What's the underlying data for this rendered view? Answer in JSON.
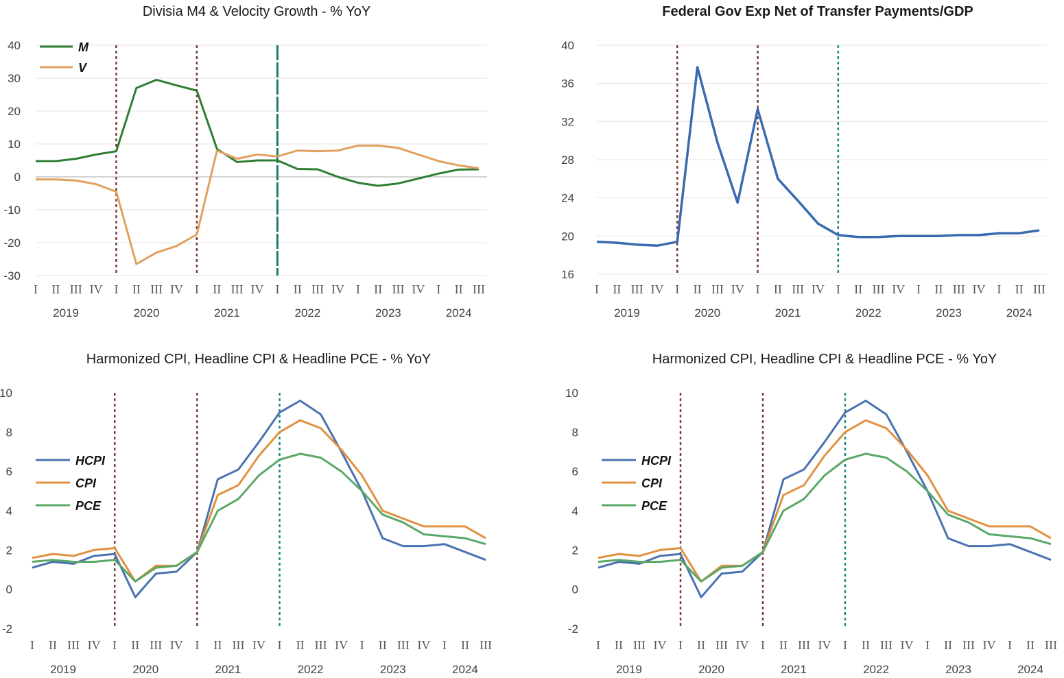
{
  "quarters": [
    "I",
    "II",
    "III",
    "IV",
    "I",
    "II",
    "III",
    "IV",
    "I",
    "II",
    "III",
    "IV",
    "I",
    "II",
    "III",
    "IV",
    "I",
    "II",
    "III",
    "IV",
    "I",
    "II",
    "III"
  ],
  "years": [
    "2019",
    "2020",
    "2021",
    "2022",
    "2023",
    "2024"
  ],
  "chart_data": [
    {
      "id": "chart1",
      "type": "line",
      "title": "Divisia M4 & Velocity Growth - % YoY",
      "title_bold": false,
      "ylim": [
        -30,
        40
      ],
      "yticks": [
        40,
        30,
        20,
        10,
        0,
        -10,
        -20,
        -30
      ],
      "grid": true,
      "zero_line": true,
      "legend_position": "top-left",
      "x_categories": [
        "2019 I",
        "2019 II",
        "2019 III",
        "2019 IV",
        "2020 I",
        "2020 II",
        "2020 III",
        "2020 IV",
        "2021 I",
        "2021 II",
        "2021 III",
        "2021 IV",
        "2022 I",
        "2022 II",
        "2022 III",
        "2022 IV",
        "2023 I",
        "2023 II",
        "2023 III",
        "2023 IV",
        "2024 I",
        "2024 II",
        "2024 III"
      ],
      "vlines": [
        {
          "at": "2020 I",
          "color": "#7B3B3B",
          "style": "dotted"
        },
        {
          "at": "2021 I",
          "color": "#7B3B3B",
          "style": "dotted"
        },
        {
          "at": "2022 I",
          "color": "#1B7A72",
          "style": "solid-dash"
        }
      ],
      "series": [
        {
          "name": "M",
          "color": "#2E7D32",
          "values": [
            4.8,
            4.8,
            5.5,
            6.8,
            7.8,
            27.0,
            29.5,
            27.8,
            26.2,
            8.5,
            4.5,
            5.0,
            5.0,
            2.4,
            2.3,
            0.0,
            -1.8,
            -2.7,
            -2.0,
            -0.5,
            1.0,
            2.2,
            2.3
          ]
        },
        {
          "name": "V",
          "color": "#E0A060",
          "values": [
            -0.8,
            -0.8,
            -1.1,
            -2.2,
            -4.5,
            -26.5,
            -23.0,
            -21.0,
            -17.5,
            8.0,
            5.5,
            6.8,
            6.2,
            8.0,
            7.8,
            8.0,
            9.5,
            9.5,
            8.8,
            6.8,
            4.8,
            3.5,
            2.6
          ]
        }
      ]
    },
    {
      "id": "chart2",
      "type": "line",
      "title": "Federal Gov Exp Net of Transfer Payments/GDP",
      "title_bold": true,
      "ylim": [
        16,
        40
      ],
      "yticks": [
        40,
        36,
        32,
        28,
        24,
        20,
        16
      ],
      "grid": true,
      "zero_line": false,
      "legend_position": "none",
      "x_categories": [
        "2019 I",
        "2019 II",
        "2019 III",
        "2019 IV",
        "2020 I",
        "2020 II",
        "2020 III",
        "2020 IV",
        "2021 I",
        "2021 II",
        "2021 III",
        "2021 IV",
        "2022 I",
        "2022 II",
        "2022 III",
        "2022 IV",
        "2023 I",
        "2023 II",
        "2023 III",
        "2023 IV",
        "2024 I",
        "2024 II",
        "2024 III"
      ],
      "vlines": [
        {
          "at": "2020 I",
          "color": "#7B3B3B",
          "style": "dotted"
        },
        {
          "at": "2021 I",
          "color": "#7B3B3B",
          "style": "dotted"
        },
        {
          "at": "2022 I",
          "color": "#1B8A80",
          "style": "dotted"
        }
      ],
      "series": [
        {
          "name": "",
          "color": "#3A6AB0",
          "values": [
            19.4,
            19.3,
            19.1,
            19.0,
            19.4,
            37.7,
            29.8,
            23.5,
            33.3,
            26.0,
            23.7,
            21.3,
            20.1,
            19.9,
            19.9,
            20.0,
            20.0,
            20.0,
            20.1,
            20.1,
            20.3,
            20.3,
            20.6
          ]
        }
      ]
    },
    {
      "id": "chart3",
      "type": "line",
      "title": "Harmonized CPI, Headline CPI & Headline PCE - % YoY",
      "title_bold": false,
      "ylim": [
        -2,
        10
      ],
      "yticks": [
        10,
        8,
        6,
        4,
        2,
        0,
        -2
      ],
      "grid": false,
      "zero_line": false,
      "legend_position": "middle-left",
      "x_categories": [
        "2019 I",
        "2019 II",
        "2019 III",
        "2019 IV",
        "2020 I",
        "2020 II",
        "2020 III",
        "2020 IV",
        "2021 I",
        "2021 II",
        "2021 III",
        "2021 IV",
        "2022 I",
        "2022 II",
        "2022 III",
        "2022 IV",
        "2023 I",
        "2023 II",
        "2023 III",
        "2023 IV",
        "2024 I",
        "2024 II",
        "2024 III"
      ],
      "vlines": [
        {
          "at": "2020 I",
          "color": "#7B3B3B",
          "style": "dotted"
        },
        {
          "at": "2021 I",
          "color": "#7B3B3B",
          "style": "dotted"
        },
        {
          "at": "2022 I",
          "color": "#1B8A80",
          "style": "dotted"
        }
      ],
      "series": [
        {
          "name": "HCPI",
          "color": "#4A72B0",
          "values": [
            1.1,
            1.4,
            1.3,
            1.7,
            1.8,
            -0.4,
            0.8,
            0.9,
            1.9,
            5.6,
            6.1,
            7.5,
            9.0,
            9.6,
            8.9,
            7.0,
            5.0,
            2.6,
            2.2,
            2.2,
            2.3,
            1.9,
            1.5
          ]
        },
        {
          "name": "CPI",
          "color": "#E0913F",
          "values": [
            1.6,
            1.8,
            1.7,
            2.0,
            2.1,
            0.4,
            1.2,
            1.2,
            1.9,
            4.8,
            5.3,
            6.8,
            8.0,
            8.6,
            8.2,
            7.1,
            5.8,
            4.0,
            3.6,
            3.2,
            3.2,
            3.2,
            2.6
          ]
        },
        {
          "name": "PCE",
          "color": "#5AA868",
          "values": [
            1.4,
            1.5,
            1.4,
            1.4,
            1.5,
            0.4,
            1.1,
            1.2,
            1.9,
            4.0,
            4.6,
            5.8,
            6.6,
            6.9,
            6.7,
            6.0,
            5.0,
            3.8,
            3.4,
            2.8,
            2.7,
            2.6,
            2.3
          ]
        }
      ]
    },
    {
      "id": "chart4",
      "type": "line",
      "title": "Harmonized CPI, Headline CPI & Headline PCE - % YoY",
      "title_bold": false,
      "ylim": [
        -2,
        10
      ],
      "yticks": [
        10,
        8,
        6,
        4,
        2,
        0,
        -2
      ],
      "grid": false,
      "zero_line": false,
      "legend_position": "middle-left",
      "x_categories": [
        "2019 I",
        "2019 II",
        "2019 III",
        "2019 IV",
        "2020 I",
        "2020 II",
        "2020 III",
        "2020 IV",
        "2021 I",
        "2021 II",
        "2021 III",
        "2021 IV",
        "2022 I",
        "2022 II",
        "2022 III",
        "2022 IV",
        "2023 I",
        "2023 II",
        "2023 III",
        "2023 IV",
        "2024 I",
        "2024 II",
        "2024 III"
      ],
      "vlines": [
        {
          "at": "2020 I",
          "color": "#7B3B3B",
          "style": "dotted"
        },
        {
          "at": "2021 I",
          "color": "#7B3B3B",
          "style": "dotted"
        },
        {
          "at": "2022 I",
          "color": "#1B8A80",
          "style": "dotted"
        }
      ],
      "series": [
        {
          "name": "HCPI",
          "color": "#4A72B0",
          "values": [
            1.1,
            1.4,
            1.3,
            1.7,
            1.8,
            -0.4,
            0.8,
            0.9,
            1.9,
            5.6,
            6.1,
            7.5,
            9.0,
            9.6,
            8.9,
            7.0,
            5.0,
            2.6,
            2.2,
            2.2,
            2.3,
            1.9,
            1.5
          ]
        },
        {
          "name": "CPI",
          "color": "#E0913F",
          "values": [
            1.6,
            1.8,
            1.7,
            2.0,
            2.1,
            0.4,
            1.2,
            1.2,
            1.9,
            4.8,
            5.3,
            6.8,
            8.0,
            8.6,
            8.2,
            7.1,
            5.8,
            4.0,
            3.6,
            3.2,
            3.2,
            3.2,
            2.6
          ]
        },
        {
          "name": "PCE",
          "color": "#5AA868",
          "values": [
            1.4,
            1.5,
            1.4,
            1.4,
            1.5,
            0.4,
            1.1,
            1.2,
            1.9,
            4.0,
            4.6,
            5.8,
            6.6,
            6.9,
            6.7,
            6.0,
            5.0,
            3.8,
            3.4,
            2.8,
            2.7,
            2.6,
            2.3
          ]
        }
      ]
    }
  ]
}
